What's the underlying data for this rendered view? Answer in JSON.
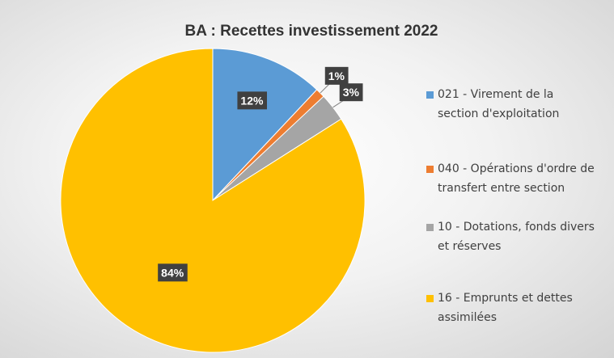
{
  "chart_data": {
    "type": "pie",
    "title": "BA : Recettes investissement 2022",
    "categories": [
      "021 - Virement de la section d'exploitation",
      "040 - Opérations d'ordre de transfert entre section",
      "10 - Dotations, fonds divers et réserves",
      "16 - Emprunts et dettes assimilées"
    ],
    "values": [
      12,
      1,
      3,
      84
    ],
    "value_labels": [
      "12%",
      "1%",
      "3%",
      "84%"
    ],
    "colors": [
      "#5b9bd5",
      "#ed7d31",
      "#a5a5a5",
      "#ffc000"
    ],
    "legend": "right"
  }
}
